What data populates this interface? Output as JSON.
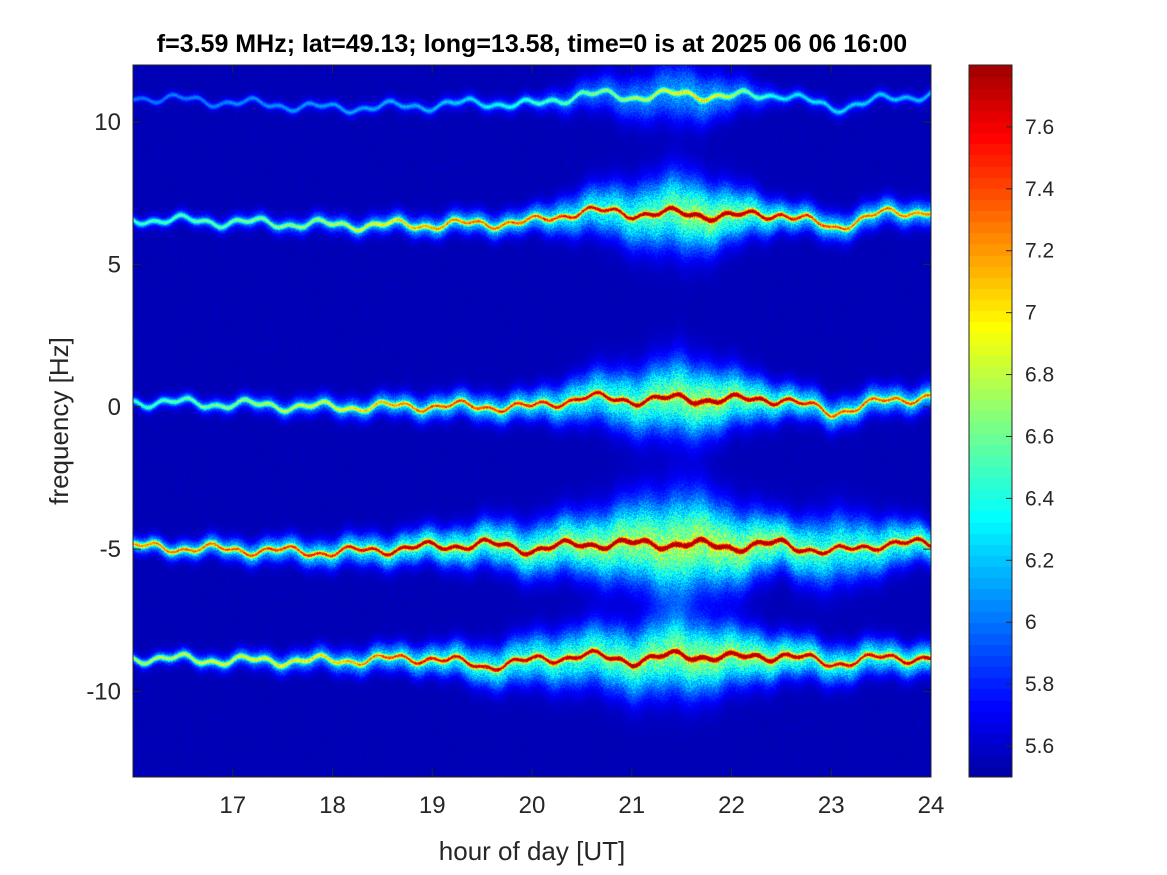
{
  "chart_data": {
    "type": "heatmap",
    "title": "f=3.59 MHz;  lat=49.13; long=13.58, time=0 is at 2025 06 06 16:00",
    "xlabel": "hour of day [UT]",
    "ylabel": "frequency [Hz]",
    "xlim": [
      16,
      24
    ],
    "ylim": [
      -13,
      12
    ],
    "xticks": [
      17,
      18,
      19,
      20,
      21,
      22,
      23,
      24
    ],
    "yticks": [
      -10,
      -5,
      0,
      5,
      10
    ],
    "colormap": "jet",
    "colorbar": {
      "range": [
        5.5,
        7.8
      ],
      "ticks": [
        5.6,
        5.8,
        6,
        6.2,
        6.4,
        6.6,
        6.8,
        7,
        7.2,
        7.4,
        7.6
      ]
    },
    "background_value": 5.5,
    "traces": [
      {
        "center_y": [
          [
            16,
            10.9
          ],
          [
            17,
            10.7
          ],
          [
            18,
            10.5
          ],
          [
            19,
            10.6
          ],
          [
            19.5,
            10.7
          ],
          [
            20,
            10.6
          ],
          [
            20.5,
            11.0
          ],
          [
            21,
            10.9
          ],
          [
            21.5,
            11.0
          ],
          [
            22,
            10.9
          ],
          [
            22.5,
            11.0
          ],
          [
            23,
            10.5
          ],
          [
            23.5,
            10.8
          ],
          [
            24,
            11.0
          ]
        ],
        "intensity": [
          [
            16,
            0.15
          ],
          [
            19,
            0.2
          ],
          [
            20,
            0.3
          ],
          [
            21,
            0.4
          ],
          [
            21.7,
            0.5
          ],
          [
            22.5,
            0.25
          ],
          [
            24,
            0.2
          ]
        ],
        "width": [
          [
            16,
            0.1
          ],
          [
            20,
            0.2
          ],
          [
            21.5,
            0.7
          ],
          [
            22.5,
            0.2
          ],
          [
            24,
            0.15
          ]
        ]
      },
      {
        "center_y": [
          [
            16,
            6.6
          ],
          [
            17,
            6.5
          ],
          [
            18,
            6.4
          ],
          [
            19,
            6.4
          ],
          [
            20,
            6.5
          ],
          [
            20.5,
            6.9
          ],
          [
            21,
            6.8
          ],
          [
            21.5,
            6.8
          ],
          [
            22,
            6.7
          ],
          [
            22.5,
            6.8
          ],
          [
            23,
            6.3
          ],
          [
            23.5,
            6.8
          ],
          [
            24,
            6.9
          ]
        ],
        "intensity": [
          [
            16,
            0.3
          ],
          [
            18,
            0.4
          ],
          [
            19,
            0.55
          ],
          [
            20,
            0.6
          ],
          [
            21,
            0.75
          ],
          [
            21.7,
            0.95
          ],
          [
            22.5,
            0.7
          ],
          [
            23,
            0.6
          ],
          [
            24,
            0.55
          ]
        ],
        "width": [
          [
            16,
            0.15
          ],
          [
            20,
            0.3
          ],
          [
            21.5,
            0.9
          ],
          [
            22.5,
            0.35
          ],
          [
            24,
            0.3
          ]
        ]
      },
      {
        "center_y": [
          [
            16,
            0.2
          ],
          [
            17,
            0.1
          ],
          [
            18,
            0.0
          ],
          [
            19,
            0.05
          ],
          [
            20,
            0.0
          ],
          [
            20.5,
            0.35
          ],
          [
            21,
            0.25
          ],
          [
            21.5,
            0.3
          ],
          [
            22,
            0.25
          ],
          [
            22.5,
            0.3
          ],
          [
            23,
            -0.2
          ],
          [
            23.5,
            0.2
          ],
          [
            24,
            0.4
          ]
        ],
        "intensity": [
          [
            16,
            0.3
          ],
          [
            18,
            0.45
          ],
          [
            19,
            0.6
          ],
          [
            20,
            0.65
          ],
          [
            21,
            0.8
          ],
          [
            21.7,
            0.95
          ],
          [
            22.5,
            0.75
          ],
          [
            23,
            0.6
          ],
          [
            24,
            0.6
          ]
        ],
        "width": [
          [
            16,
            0.15
          ],
          [
            20,
            0.35
          ],
          [
            21.5,
            0.9
          ],
          [
            22.5,
            0.4
          ],
          [
            24,
            0.3
          ]
        ]
      },
      {
        "center_y": [
          [
            16,
            -4.9
          ],
          [
            17,
            -5.0
          ],
          [
            18,
            -5.1
          ],
          [
            19,
            -4.9
          ],
          [
            19.5,
            -4.8
          ],
          [
            20,
            -5.0
          ],
          [
            20.5,
            -4.8
          ],
          [
            21,
            -4.8
          ],
          [
            21.5,
            -4.8
          ],
          [
            22,
            -4.9
          ],
          [
            22.5,
            -4.8
          ],
          [
            23,
            -5.1
          ],
          [
            23.5,
            -4.8
          ],
          [
            24,
            -4.8
          ]
        ],
        "intensity": [
          [
            16,
            0.55
          ],
          [
            18,
            0.65
          ],
          [
            19,
            0.8
          ],
          [
            20,
            0.85
          ],
          [
            21,
            0.95
          ],
          [
            21.7,
            1.0
          ],
          [
            22.5,
            0.9
          ],
          [
            23,
            0.75
          ],
          [
            24,
            0.8
          ]
        ],
        "width": [
          [
            16,
            0.2
          ],
          [
            19,
            0.4
          ],
          [
            20.5,
            0.7
          ],
          [
            21.5,
            1.2
          ],
          [
            22.5,
            0.6
          ],
          [
            23,
            0.8
          ],
          [
            24,
            0.4
          ]
        ]
      },
      {
        "center_y": [
          [
            16,
            -8.8
          ],
          [
            17,
            -8.9
          ],
          [
            18,
            -8.9
          ],
          [
            19,
            -8.8
          ],
          [
            19.5,
            -9.1
          ],
          [
            20,
            -8.9
          ],
          [
            20.5,
            -8.7
          ],
          [
            21,
            -8.9
          ],
          [
            21.5,
            -8.7
          ],
          [
            22,
            -8.8
          ],
          [
            22.5,
            -8.7
          ],
          [
            23,
            -9.0
          ],
          [
            23.5,
            -8.8
          ],
          [
            24,
            -8.8
          ]
        ],
        "intensity": [
          [
            16,
            0.4
          ],
          [
            18,
            0.5
          ],
          [
            19,
            0.7
          ],
          [
            20,
            0.75
          ],
          [
            21,
            0.85
          ],
          [
            21.7,
            0.95
          ],
          [
            22.5,
            0.85
          ],
          [
            23,
            0.7
          ],
          [
            24,
            0.75
          ]
        ],
        "width": [
          [
            16,
            0.15
          ],
          [
            19,
            0.35
          ],
          [
            21.5,
            0.9
          ],
          [
            22.5,
            0.5
          ],
          [
            24,
            0.35
          ]
        ]
      }
    ]
  }
}
